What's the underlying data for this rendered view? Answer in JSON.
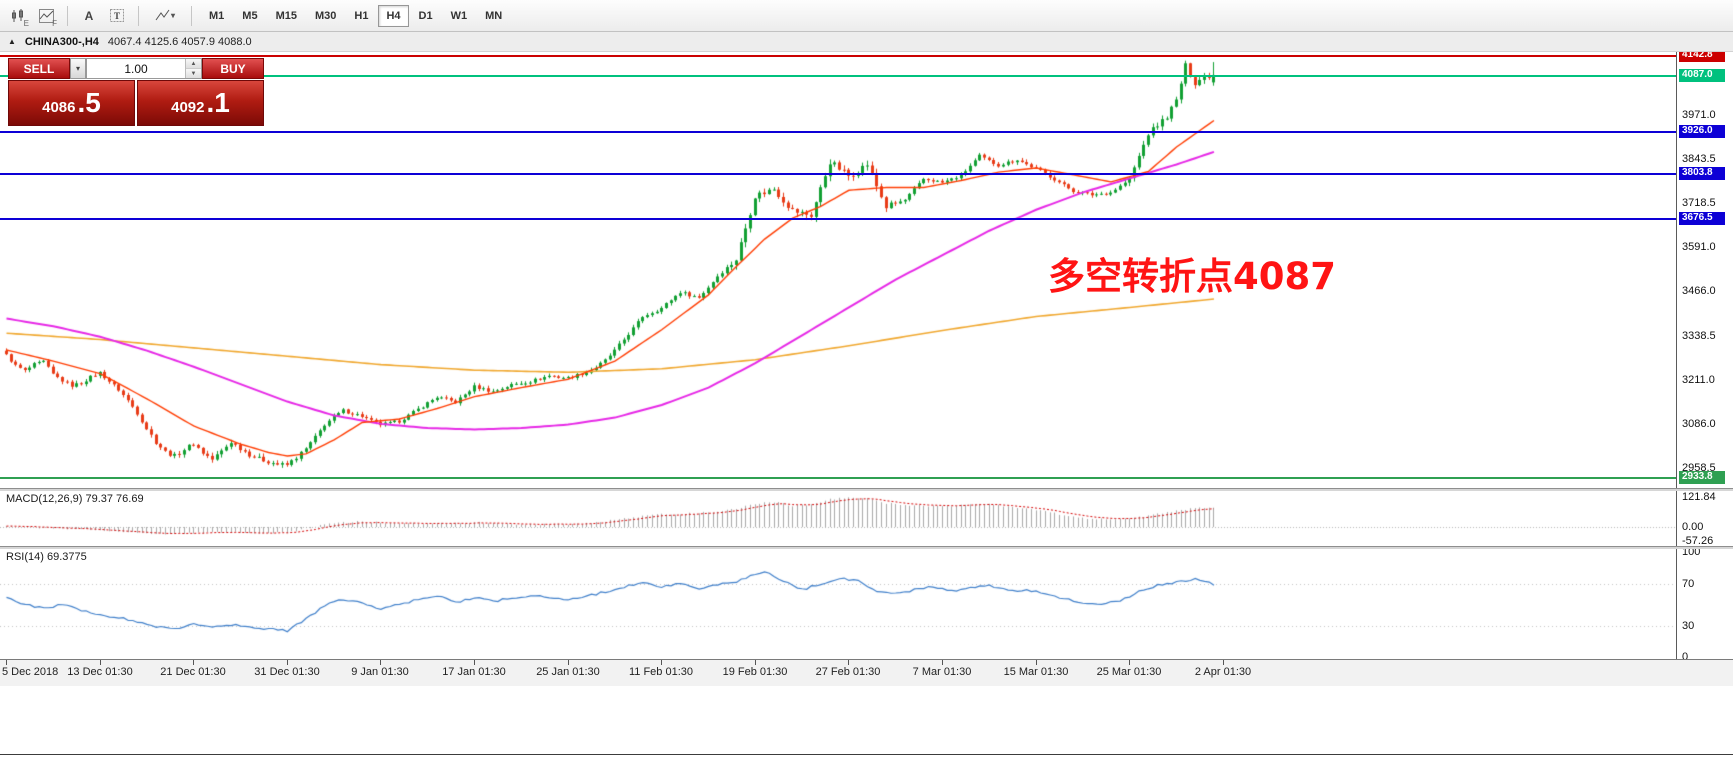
{
  "toolbar": {
    "icons": [
      "charts-icon",
      "indicators-icon",
      "text-cursor-icon",
      "text-label-icon",
      "drawing-tools-icon"
    ],
    "icon_subs": {
      "charts": "E",
      "indicators": "F",
      "text_cursor": "A",
      "text_label": "T"
    },
    "timeframes": [
      "M1",
      "M5",
      "M15",
      "M30",
      "H1",
      "H4",
      "D1",
      "W1",
      "MN"
    ],
    "active_timeframe": "H4"
  },
  "info_bar": {
    "collapse_glyph": "▲",
    "symbol": "CHINA300-,H4",
    "ohlc": "4067.4 4125.6 4057.9 4088.0"
  },
  "trade_panel": {
    "sell_label": "SELL",
    "buy_label": "BUY",
    "volume": "1.00",
    "sell_price_main": "4086",
    "sell_price_big": ".5",
    "buy_price_main": "4092",
    "buy_price_big": ".1"
  },
  "colors": {
    "candle_up": "#12a033",
    "candle_down": "#e83b17",
    "chart_bg": "#ffffff",
    "axis_text": "#111111",
    "line_red": "#cc0000",
    "line_green": "#00c17e",
    "line_blue": "#0d00d6",
    "line_green_dark": "#2fa052"
  },
  "chart_data": {
    "type": "candlestick",
    "symbol": "CHINA300-",
    "period": "H4",
    "bars": 259,
    "ohlc_current": {
      "open": 4067.4,
      "high": 4125.6,
      "low": 4057.9,
      "close": 4088.0
    },
    "y_ticks": [
      3971.0,
      3843.5,
      3718.5,
      3591.0,
      3466.0,
      3338.5,
      3211.0,
      3086.0,
      2958.5
    ],
    "bar_indices_per_tick": [
      0,
      20,
      40,
      60,
      80,
      100,
      120,
      140,
      160,
      180,
      200,
      220,
      240,
      260
    ],
    "x_tick_labels": [
      "5 Dec 2018",
      "13 Dec 01:30",
      "21 Dec 01:30",
      "31 Dec 01:30",
      "9 Jan 01:30",
      "17 Jan 01:30",
      "25 Jan 01:30",
      "11 Feb 01:30",
      "19 Feb 01:30",
      "27 Feb 01:30",
      "7 Mar 01:30",
      "15 Mar 01:30",
      "25 Mar 01:30",
      "2 Apr 01:30"
    ],
    "hlines": [
      {
        "price": 4142.8,
        "label": "4142.8",
        "color": "#cc0000"
      },
      {
        "price": 4087.0,
        "label": "4087.0",
        "color": "#00c17e"
      },
      {
        "price": 3926.0,
        "label": "3926.0",
        "color": "#0d00d6"
      },
      {
        "price": 3803.8,
        "label": "3803.8",
        "color": "#0d00d6"
      },
      {
        "price": 3676.5,
        "label": "3676.5",
        "color": "#0d00d6"
      },
      {
        "price": 2933.8,
        "label": "2933.8",
        "color": "#2fa052"
      }
    ],
    "annotation": {
      "text": "多空转折点4087",
      "color": "#ff1414"
    },
    "close_waypoints": [
      [
        0,
        3285
      ],
      [
        2,
        3255
      ],
      [
        4,
        3240
      ],
      [
        6,
        3258
      ],
      [
        8,
        3266
      ],
      [
        10,
        3230
      ],
      [
        12,
        3212
      ],
      [
        14,
        3198
      ],
      [
        16,
        3205
      ],
      [
        18,
        3222
      ],
      [
        20,
        3235
      ],
      [
        22,
        3210
      ],
      [
        24,
        3186
      ],
      [
        26,
        3155
      ],
      [
        28,
        3120
      ],
      [
        30,
        3075
      ],
      [
        32,
        3036
      ],
      [
        34,
        3008
      ],
      [
        36,
        2996
      ],
      [
        38,
        3015
      ],
      [
        40,
        3032
      ],
      [
        42,
        3005
      ],
      [
        44,
        2986
      ],
      [
        46,
        3010
      ],
      [
        48,
        3036
      ],
      [
        50,
        3018
      ],
      [
        52,
        3000
      ],
      [
        54,
        2988
      ],
      [
        56,
        2980
      ],
      [
        58,
        2972
      ],
      [
        60,
        2970
      ],
      [
        62,
        2992
      ],
      [
        64,
        3016
      ],
      [
        66,
        3050
      ],
      [
        68,
        3086
      ],
      [
        70,
        3108
      ],
      [
        72,
        3126
      ],
      [
        74,
        3118
      ],
      [
        76,
        3110
      ],
      [
        78,
        3096
      ],
      [
        80,
        3086
      ],
      [
        82,
        3090
      ],
      [
        84,
        3096
      ],
      [
        86,
        3112
      ],
      [
        88,
        3130
      ],
      [
        90,
        3148
      ],
      [
        92,
        3165
      ],
      [
        94,
        3158
      ],
      [
        96,
        3150
      ],
      [
        98,
        3172
      ],
      [
        100,
        3195
      ],
      [
        102,
        3188
      ],
      [
        104,
        3180
      ],
      [
        106,
        3190
      ],
      [
        108,
        3200
      ],
      [
        110,
        3205
      ],
      [
        112,
        3210
      ],
      [
        114,
        3218
      ],
      [
        116,
        3226
      ],
      [
        118,
        3222
      ],
      [
        120,
        3220
      ],
      [
        122,
        3228
      ],
      [
        124,
        3236
      ],
      [
        126,
        3250
      ],
      [
        128,
        3270
      ],
      [
        130,
        3298
      ],
      [
        132,
        3330
      ],
      [
        134,
        3362
      ],
      [
        136,
        3396
      ],
      [
        138,
        3408
      ],
      [
        140,
        3420
      ],
      [
        142,
        3444
      ],
      [
        144,
        3466
      ],
      [
        146,
        3458
      ],
      [
        148,
        3450
      ],
      [
        150,
        3480
      ],
      [
        152,
        3512
      ],
      [
        154,
        3536
      ],
      [
        156,
        3560
      ],
      [
        158,
        3650
      ],
      [
        160,
        3742
      ],
      [
        162,
        3752
      ],
      [
        164,
        3762
      ],
      [
        166,
        3730
      ],
      [
        168,
        3700
      ],
      [
        170,
        3692
      ],
      [
        172,
        3686
      ],
      [
        174,
        3762
      ],
      [
        176,
        3840
      ],
      [
        178,
        3820
      ],
      [
        180,
        3800
      ],
      [
        182,
        3816
      ],
      [
        184,
        3832
      ],
      [
        186,
        3770
      ],
      [
        188,
        3710
      ],
      [
        190,
        3720
      ],
      [
        192,
        3730
      ],
      [
        194,
        3760
      ],
      [
        196,
        3790
      ],
      [
        198,
        3786
      ],
      [
        200,
        3780
      ],
      [
        202,
        3790
      ],
      [
        204,
        3800
      ],
      [
        206,
        3828
      ],
      [
        208,
        3856
      ],
      [
        210,
        3842
      ],
      [
        212,
        3830
      ],
      [
        214,
        3838
      ],
      [
        216,
        3846
      ],
      [
        218,
        3832
      ],
      [
        220,
        3820
      ],
      [
        222,
        3806
      ],
      [
        224,
        3790
      ],
      [
        226,
        3772
      ],
      [
        228,
        3756
      ],
      [
        230,
        3750
      ],
      [
        232,
        3745
      ],
      [
        234,
        3748
      ],
      [
        236,
        3752
      ],
      [
        238,
        3770
      ],
      [
        240,
        3790
      ],
      [
        242,
        3855
      ],
      [
        244,
        3920
      ],
      [
        246,
        3945
      ],
      [
        248,
        3970
      ],
      [
        250,
        4015
      ],
      [
        252,
        4115
      ],
      [
        254,
        4066
      ],
      [
        256,
        4085
      ],
      [
        258,
        4088
      ]
    ],
    "ma_fast": {
      "color": "#ff3c00",
      "waypoints": [
        [
          0,
          3300
        ],
        [
          10,
          3268
        ],
        [
          20,
          3232
        ],
        [
          30,
          3160
        ],
        [
          40,
          3082
        ],
        [
          50,
          3030
        ],
        [
          56,
          3006
        ],
        [
          60,
          2996
        ],
        [
          64,
          3002
        ],
        [
          70,
          3042
        ],
        [
          76,
          3092
        ],
        [
          84,
          3102
        ],
        [
          92,
          3132
        ],
        [
          100,
          3166
        ],
        [
          110,
          3192
        ],
        [
          120,
          3216
        ],
        [
          130,
          3268
        ],
        [
          140,
          3358
        ],
        [
          150,
          3458
        ],
        [
          156,
          3540
        ],
        [
          162,
          3618
        ],
        [
          168,
          3678
        ],
        [
          174,
          3712
        ],
        [
          180,
          3758
        ],
        [
          188,
          3766
        ],
        [
          196,
          3766
        ],
        [
          204,
          3786
        ],
        [
          212,
          3810
        ],
        [
          220,
          3822
        ],
        [
          228,
          3802
        ],
        [
          236,
          3782
        ],
        [
          244,
          3812
        ],
        [
          250,
          3882
        ],
        [
          258,
          3958
        ]
      ]
    },
    "ma_mid": {
      "color": "#e628e6",
      "waypoints": [
        [
          0,
          3390
        ],
        [
          10,
          3368
        ],
        [
          20,
          3338
        ],
        [
          30,
          3298
        ],
        [
          40,
          3252
        ],
        [
          50,
          3202
        ],
        [
          60,
          3152
        ],
        [
          70,
          3112
        ],
        [
          80,
          3088
        ],
        [
          90,
          3076
        ],
        [
          100,
          3072
        ],
        [
          110,
          3076
        ],
        [
          120,
          3086
        ],
        [
          130,
          3106
        ],
        [
          140,
          3142
        ],
        [
          150,
          3192
        ],
        [
          160,
          3262
        ],
        [
          170,
          3342
        ],
        [
          180,
          3422
        ],
        [
          190,
          3502
        ],
        [
          200,
          3572
        ],
        [
          210,
          3642
        ],
        [
          220,
          3702
        ],
        [
          230,
          3752
        ],
        [
          240,
          3792
        ],
        [
          250,
          3832
        ],
        [
          258,
          3868
        ]
      ]
    },
    "ma_slow": {
      "color": "#f0a830",
      "waypoints": [
        [
          0,
          3348
        ],
        [
          20,
          3330
        ],
        [
          40,
          3306
        ],
        [
          60,
          3282
        ],
        [
          80,
          3258
        ],
        [
          100,
          3242
        ],
        [
          120,
          3236
        ],
        [
          140,
          3246
        ],
        [
          160,
          3272
        ],
        [
          180,
          3312
        ],
        [
          200,
          3356
        ],
        [
          220,
          3396
        ],
        [
          240,
          3422
        ],
        [
          258,
          3446
        ]
      ]
    },
    "macd": {
      "label_full": "MACD(12,26,9) 79.37 76.69",
      "scale_labels": [
        "121.84",
        "0.00",
        "-57.26"
      ],
      "scale_values": [
        121.84,
        0,
        -57.26
      ],
      "hist_color": "#a8a8a8",
      "signal_color": "#d40000",
      "hist_waypoints": [
        [
          0,
          6
        ],
        [
          8,
          -4
        ],
        [
          16,
          -10
        ],
        [
          24,
          -16
        ],
        [
          32,
          -30
        ],
        [
          40,
          -24
        ],
        [
          48,
          -22
        ],
        [
          56,
          -26
        ],
        [
          60,
          -22
        ],
        [
          64,
          -8
        ],
        [
          68,
          14
        ],
        [
          76,
          22
        ],
        [
          84,
          12
        ],
        [
          92,
          16
        ],
        [
          100,
          18
        ],
        [
          108,
          12
        ],
        [
          116,
          10
        ],
        [
          124,
          14
        ],
        [
          132,
          34
        ],
        [
          140,
          52
        ],
        [
          148,
          56
        ],
        [
          156,
          72
        ],
        [
          160,
          95
        ],
        [
          164,
          102
        ],
        [
          168,
          86
        ],
        [
          172,
          92
        ],
        [
          176,
          112
        ],
        [
          180,
          120
        ],
        [
          184,
          114
        ],
        [
          188,
          96
        ],
        [
          192,
          90
        ],
        [
          196,
          86
        ],
        [
          200,
          84
        ],
        [
          204,
          90
        ],
        [
          208,
          96
        ],
        [
          212,
          88
        ],
        [
          216,
          80
        ],
        [
          220,
          68
        ],
        [
          224,
          56
        ],
        [
          228,
          42
        ],
        [
          232,
          34
        ],
        [
          236,
          30
        ],
        [
          240,
          32
        ],
        [
          244,
          46
        ],
        [
          248,
          60
        ],
        [
          252,
          72
        ],
        [
          256,
          78
        ],
        [
          258,
          79.4
        ]
      ]
    },
    "rsi": {
      "label_full": "RSI(14) 69.3775",
      "levels": [
        100,
        70,
        30,
        0
      ],
      "level_lines": [
        70,
        30
      ],
      "color": "#3f7fca",
      "waypoints": [
        [
          0,
          56
        ],
        [
          4,
          50
        ],
        [
          8,
          46
        ],
        [
          12,
          50
        ],
        [
          16,
          44
        ],
        [
          20,
          40
        ],
        [
          24,
          38
        ],
        [
          28,
          33
        ],
        [
          32,
          29
        ],
        [
          36,
          27
        ],
        [
          40,
          32
        ],
        [
          44,
          29
        ],
        [
          48,
          31
        ],
        [
          52,
          28
        ],
        [
          56,
          27
        ],
        [
          60,
          25
        ],
        [
          64,
          36
        ],
        [
          68,
          49
        ],
        [
          72,
          55
        ],
        [
          76,
          51
        ],
        [
          80,
          46
        ],
        [
          84,
          50
        ],
        [
          88,
          55
        ],
        [
          92,
          58
        ],
        [
          96,
          52
        ],
        [
          100,
          57
        ],
        [
          104,
          53
        ],
        [
          108,
          56
        ],
        [
          112,
          58
        ],
        [
          116,
          57
        ],
        [
          120,
          55
        ],
        [
          124,
          58
        ],
        [
          128,
          62
        ],
        [
          132,
          67
        ],
        [
          136,
          71
        ],
        [
          140,
          67
        ],
        [
          144,
          70
        ],
        [
          148,
          64
        ],
        [
          152,
          69
        ],
        [
          156,
          72
        ],
        [
          160,
          79
        ],
        [
          162,
          81
        ],
        [
          166,
          72
        ],
        [
          170,
          64
        ],
        [
          174,
          70
        ],
        [
          178,
          75
        ],
        [
          182,
          72
        ],
        [
          186,
          62
        ],
        [
          190,
          60
        ],
        [
          194,
          64
        ],
        [
          198,
          67
        ],
        [
          202,
          63
        ],
        [
          206,
          66
        ],
        [
          210,
          68
        ],
        [
          214,
          63
        ],
        [
          218,
          64
        ],
        [
          222,
          60
        ],
        [
          226,
          56
        ],
        [
          230,
          52
        ],
        [
          234,
          51
        ],
        [
          238,
          54
        ],
        [
          242,
          62
        ],
        [
          246,
          68
        ],
        [
          250,
          71
        ],
        [
          254,
          74
        ],
        [
          256,
          72
        ],
        [
          258,
          69.4
        ]
      ]
    }
  }
}
